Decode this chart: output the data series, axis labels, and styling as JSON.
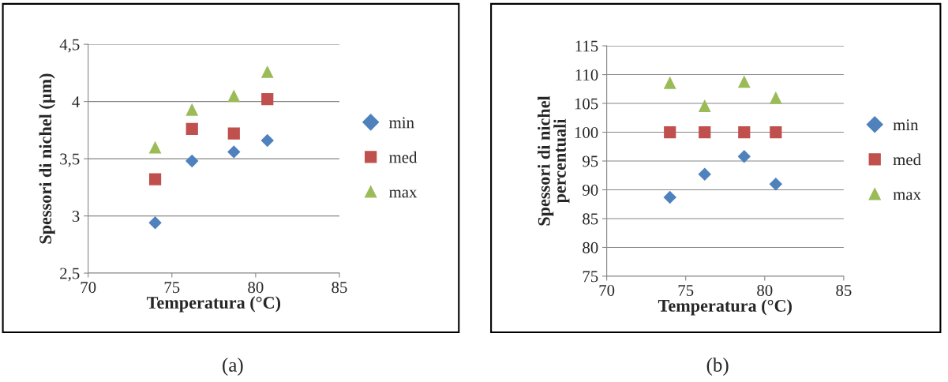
{
  "chart_data": [
    {
      "type": "scatter",
      "xlabel": "Temperatura (°C)",
      "ylabel": "Spessori di nichel (µm)",
      "x": [
        74.0,
        76.2,
        78.7,
        80.7
      ],
      "series": [
        {
          "name": "min",
          "color": "#4f81bd",
          "marker": "diamond",
          "values": [
            2.94,
            3.48,
            3.56,
            3.66
          ]
        },
        {
          "name": "med",
          "color": "#c0504d",
          "marker": "square",
          "values": [
            3.32,
            3.76,
            3.72,
            4.02
          ]
        },
        {
          "name": "max",
          "color": "#9bbb59",
          "marker": "triangle",
          "values": [
            3.6,
            3.93,
            4.05,
            4.26
          ]
        }
      ],
      "xlim": [
        70,
        85
      ],
      "xticks": [
        70,
        75,
        80,
        85
      ],
      "ylim": [
        2.5,
        4.5
      ],
      "yticks": [
        {
          "value": 2.5,
          "label": "2,5"
        },
        3,
        {
          "value": 3.5,
          "label": "3,5"
        },
        4,
        {
          "value": 4.5,
          "label": "4,5"
        }
      ],
      "grid": "y",
      "legend": "right",
      "annotations": [
        "(a)"
      ]
    },
    {
      "type": "scatter",
      "xlabel": "Temperatura (°C)",
      "ylabel": "Spessori di nichel\npercentuali",
      "x": [
        74.0,
        76.2,
        78.7,
        80.7
      ],
      "series": [
        {
          "name": "min",
          "color": "#4f81bd",
          "marker": "diamond",
          "values": [
            88.7,
            92.7,
            95.8,
            91.0
          ]
        },
        {
          "name": "med",
          "color": "#c0504d",
          "marker": "square",
          "values": [
            100,
            100,
            100,
            100
          ]
        },
        {
          "name": "max",
          "color": "#9bbb59",
          "marker": "triangle",
          "values": [
            108.6,
            104.6,
            108.8,
            106.0
          ]
        }
      ],
      "xlim": [
        70,
        85
      ],
      "xticks": [
        70,
        75,
        80,
        85
      ],
      "ylim": [
        75,
        115
      ],
      "yticks": [
        75,
        80,
        85,
        90,
        95,
        100,
        105,
        110,
        115
      ],
      "grid": "y",
      "legend": "right",
      "annotations": [
        "(b)"
      ]
    }
  ]
}
